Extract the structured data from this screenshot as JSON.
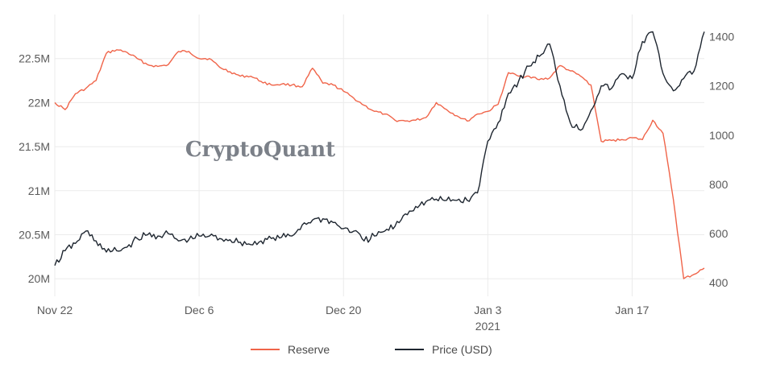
{
  "chart_data": {
    "type": "line",
    "watermark": "CryptoQuant",
    "x_ticks": [
      {
        "date": "2020-11-22",
        "label": "Nov 22"
      },
      {
        "date": "2020-12-06",
        "label": "Dec 6"
      },
      {
        "date": "2020-12-20",
        "label": "Dec 20"
      },
      {
        "date": "2021-01-03",
        "label": "Jan 3"
      },
      {
        "date": "2021-01-17",
        "label": "Jan 17"
      }
    ],
    "x_year_label": "2021",
    "xlim": [
      "2020-11-22",
      "2021-01-24"
    ],
    "y_left": {
      "ylim": [
        19800000,
        23000000
      ],
      "ticks": [
        20000000,
        20500000,
        21000000,
        21500000,
        22000000,
        22500000
      ],
      "tick_labels": [
        "20M",
        "20.5M",
        "21M",
        "21.5M",
        "22M",
        "22.5M"
      ]
    },
    "y_right": {
      "ylim": [
        345,
        1490
      ],
      "ticks": [
        400,
        600,
        800,
        1000,
        1200,
        1400
      ],
      "tick_labels": [
        "400",
        "600",
        "800",
        "1000",
        "1200",
        "1400"
      ]
    },
    "grid": true,
    "legend_position": "bottom-center",
    "series": [
      {
        "name": "Reserve",
        "axis": "left",
        "color": "#f06449",
        "x": [
          "2020-11-22",
          "2020-11-23",
          "2020-11-24",
          "2020-11-25",
          "2020-11-26",
          "2020-11-27",
          "2020-11-28",
          "2020-11-29",
          "2020-11-30",
          "2020-12-01",
          "2020-12-02",
          "2020-12-03",
          "2020-12-04",
          "2020-12-05",
          "2020-12-06",
          "2020-12-07",
          "2020-12-08",
          "2020-12-09",
          "2020-12-10",
          "2020-12-11",
          "2020-12-12",
          "2020-12-13",
          "2020-12-14",
          "2020-12-15",
          "2020-12-16",
          "2020-12-17",
          "2020-12-18",
          "2020-12-19",
          "2020-12-20",
          "2020-12-21",
          "2020-12-22",
          "2020-12-23",
          "2020-12-24",
          "2020-12-25",
          "2020-12-26",
          "2020-12-27",
          "2020-12-28",
          "2020-12-29",
          "2020-12-30",
          "2020-12-31",
          "2021-01-01",
          "2021-01-02",
          "2021-01-03",
          "2021-01-04",
          "2021-01-05",
          "2021-01-06",
          "2021-01-07",
          "2021-01-08",
          "2021-01-09",
          "2021-01-10",
          "2021-01-11",
          "2021-01-12",
          "2021-01-13",
          "2021-01-14",
          "2021-01-15",
          "2021-01-16",
          "2021-01-17",
          "2021-01-18",
          "2021-01-19",
          "2021-01-20",
          "2021-01-21",
          "2021-01-22",
          "2021-01-23",
          "2021-01-24"
        ],
        "values": [
          22000000,
          21920000,
          22100000,
          22160000,
          22250000,
          22560000,
          22600000,
          22570000,
          22500000,
          22430000,
          22410000,
          22430000,
          22580000,
          22580000,
          22500000,
          22500000,
          22400000,
          22350000,
          22300000,
          22300000,
          22240000,
          22200000,
          22210000,
          22200000,
          22180000,
          22390000,
          22220000,
          22200000,
          22130000,
          22050000,
          21970000,
          21900000,
          21870000,
          21800000,
          21790000,
          21800000,
          21830000,
          22000000,
          21920000,
          21850000,
          21790000,
          21870000,
          21900000,
          21980000,
          22340000,
          22300000,
          22300000,
          22260000,
          22280000,
          22420000,
          22360000,
          22300000,
          22200000,
          21560000,
          21570000,
          21580000,
          21600000,
          21580000,
          21800000,
          21650000,
          20900000,
          20000000,
          20050000,
          20120000
        ]
      },
      {
        "name": "Price (USD)",
        "axis": "right",
        "color": "#1e2630",
        "x": [
          "2020-11-22",
          "2020-11-23",
          "2020-11-24",
          "2020-11-25",
          "2020-11-26",
          "2020-11-27",
          "2020-11-28",
          "2020-11-29",
          "2020-11-30",
          "2020-12-01",
          "2020-12-02",
          "2020-12-03",
          "2020-12-04",
          "2020-12-05",
          "2020-12-06",
          "2020-12-07",
          "2020-12-08",
          "2020-12-09",
          "2020-12-10",
          "2020-12-11",
          "2020-12-12",
          "2020-12-13",
          "2020-12-14",
          "2020-12-15",
          "2020-12-16",
          "2020-12-17",
          "2020-12-18",
          "2020-12-19",
          "2020-12-20",
          "2020-12-21",
          "2020-12-22",
          "2020-12-23",
          "2020-12-24",
          "2020-12-25",
          "2020-12-26",
          "2020-12-27",
          "2020-12-28",
          "2020-12-29",
          "2020-12-30",
          "2020-12-31",
          "2021-01-01",
          "2021-01-02",
          "2021-01-03",
          "2021-01-04",
          "2021-01-05",
          "2021-01-06",
          "2021-01-07",
          "2021-01-08",
          "2021-01-09",
          "2021-01-10",
          "2021-01-11",
          "2021-01-12",
          "2021-01-13",
          "2021-01-14",
          "2021-01-15",
          "2021-01-16",
          "2021-01-17",
          "2021-01-18",
          "2021-01-19",
          "2021-01-20",
          "2021-01-21",
          "2021-01-22",
          "2021-01-23",
          "2021-01-24"
        ],
        "values": [
          470,
          530,
          560,
          610,
          570,
          525,
          530,
          545,
          580,
          595,
          590,
          600,
          570,
          575,
          590,
          590,
          580,
          575,
          565,
          555,
          570,
          580,
          585,
          590,
          635,
          655,
          660,
          645,
          620,
          610,
          570,
          590,
          610,
          630,
          680,
          710,
          730,
          740,
          735,
          735,
          735,
          765,
          975,
          1050,
          1170,
          1220,
          1280,
          1320,
          1370,
          1200,
          1050,
          1020,
          1100,
          1200,
          1190,
          1250,
          1230,
          1380,
          1420,
          1250,
          1180,
          1230,
          1260,
          1420
        ]
      }
    ]
  }
}
